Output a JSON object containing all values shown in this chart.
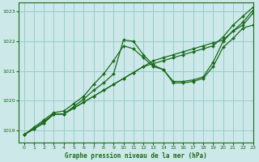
{
  "title": "Graphe pression niveau de la mer (hPa)",
  "bg_color": "#cce8e8",
  "grid_color": "#99cccc",
  "line_color": "#1a6b1a",
  "xlim": [
    -0.5,
    23
  ],
  "ylim": [
    1018.6,
    1023.3
  ],
  "yticks": [
    1019,
    1020,
    1021,
    1022,
    1023
  ],
  "xticks": [
    0,
    1,
    2,
    3,
    4,
    5,
    6,
    7,
    8,
    9,
    10,
    11,
    12,
    13,
    14,
    15,
    16,
    17,
    18,
    19,
    20,
    21,
    22,
    23
  ],
  "series": [
    [
      1018.85,
      1019.05,
      1019.25,
      1019.55,
      1019.55,
      1019.75,
      1019.95,
      1020.15,
      1020.35,
      1020.55,
      1020.75,
      1020.95,
      1021.15,
      1021.35,
      1021.45,
      1021.55,
      1021.65,
      1021.75,
      1021.85,
      1021.95,
      1022.05,
      1022.35,
      1022.65,
      1023.05
    ],
    [
      1018.85,
      1019.05,
      1019.25,
      1019.55,
      1019.55,
      1019.75,
      1019.95,
      1020.15,
      1020.35,
      1020.55,
      1020.75,
      1020.95,
      1021.15,
      1021.25,
      1021.35,
      1021.45,
      1021.55,
      1021.65,
      1021.75,
      1021.85,
      1022.15,
      1022.55,
      1022.85,
      1023.15
    ],
    [
      1018.85,
      1019.05,
      1019.3,
      1019.55,
      1019.55,
      1019.8,
      1020.05,
      1020.35,
      1020.6,
      1020.9,
      1022.05,
      1022.0,
      1021.55,
      1021.2,
      1021.05,
      1020.6,
      1020.6,
      1020.65,
      1020.75,
      1021.15,
      1021.8,
      1022.1,
      1022.45,
      1022.55
    ],
    [
      1018.85,
      1019.1,
      1019.35,
      1019.6,
      1019.65,
      1019.9,
      1020.15,
      1020.55,
      1020.9,
      1021.35,
      1021.85,
      1021.75,
      1021.45,
      1021.15,
      1021.05,
      1020.65,
      1020.65,
      1020.7,
      1020.8,
      1021.3,
      1022.0,
      1022.35,
      1022.55,
      1022.95
    ]
  ]
}
